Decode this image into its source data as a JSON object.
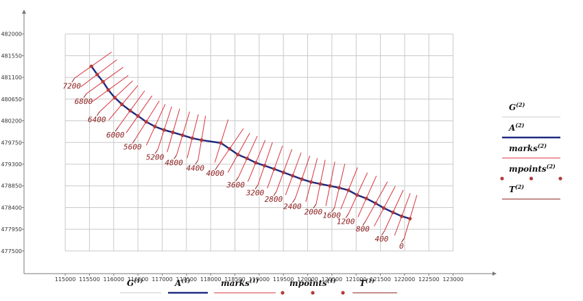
{
  "chart_data": {
    "type": "line",
    "xlim": [
      114150,
      123840
    ],
    "ylim": [
      477030,
      482450
    ],
    "xticks": [
      115000,
      115500,
      116000,
      116500,
      117000,
      117500,
      118000,
      118500,
      119000,
      119500,
      120000,
      120500,
      121000,
      121500,
      122000,
      122500,
      123000
    ],
    "yticks": [
      477500,
      477950,
      478400,
      478850,
      479300,
      479750,
      480200,
      480650,
      481100,
      481550,
      482000
    ],
    "grid": true,
    "grid_color": "#c8c8c8",
    "series": [
      {
        "name": "A",
        "color": "#1f2a80",
        "x": [
          115540,
          115660,
          115780,
          115890,
          116020,
          116170,
          116340,
          116500,
          116670,
          116850,
          117040,
          117220,
          117420,
          117620,
          117810,
          118210,
          118390,
          118560,
          118750,
          118930,
          119110,
          119310,
          119500,
          119690,
          119880,
          120070,
          120260,
          120460,
          120650,
          120840,
          121020,
          121210,
          121400,
          121570,
          121760,
          121940,
          122110
        ],
        "y": [
          481330,
          481160,
          481010,
          480840,
          480680,
          480540,
          480410,
          480300,
          480180,
          480080,
          480010,
          479960,
          479900,
          479840,
          479800,
          479740,
          479620,
          479500,
          479420,
          479330,
          479270,
          479200,
          479130,
          479060,
          478990,
          478930,
          478890,
          478850,
          478810,
          478760,
          478660,
          478590,
          478490,
          478390,
          478300,
          478220,
          478170
        ]
      }
    ],
    "station_labels": [
      7200,
      6800,
      6400,
      6000,
      5600,
      5200,
      4800,
      4400,
      4000,
      3600,
      3200,
      2800,
      2400,
      2000,
      1600,
      1200,
      800,
      400,
      0
    ],
    "mark_color": "#d9303a",
    "point_color": "#b33a3a",
    "label_color": "#8b1a1a",
    "legend_bottom": [
      {
        "name": "G",
        "sup": "(1)"
      },
      {
        "name": "A",
        "sup": "(1)"
      },
      {
        "name": "marks",
        "sup": "(1)"
      },
      {
        "name": "mpoints",
        "sup": "(1)"
      },
      {
        "name": "T",
        "sup": "(1)"
      }
    ],
    "legend_right": [
      {
        "name": "G",
        "sup": "(2)"
      },
      {
        "name": "A",
        "sup": "(2)"
      },
      {
        "name": "marks",
        "sup": "(2)"
      },
      {
        "name": "mpoints",
        "sup": "(2)"
      },
      {
        "name": "T",
        "sup": "(2)"
      }
    ]
  }
}
